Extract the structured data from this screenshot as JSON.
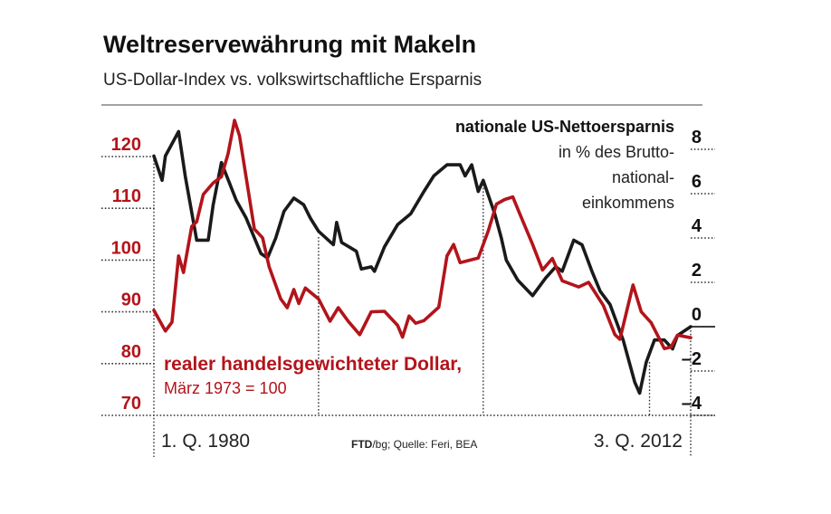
{
  "chart_data": {
    "type": "line",
    "title": "Weltreservewährung mit Makeln",
    "subtitle": "US-Dollar-Index vs. volkswirtschaftliche Ersparnis",
    "source_prefix": "FTD",
    "source_rest": "/bg; Quelle: Feri, BEA",
    "x_start_label": "1. Q. 1980",
    "x_end_label": "3. Q. 2012",
    "xlim": [
      1980.0,
      2012.6
    ],
    "colors": {
      "dollar": "#b3141b",
      "savings": "#1a1a1a"
    },
    "left_axis": {
      "ticks": [
        "120",
        "110",
        "100",
        "90",
        "80",
        "70"
      ],
      "tick_values": [
        120,
        110,
        100,
        90,
        80,
        70
      ],
      "ylim": [
        70,
        120
      ],
      "color": "#b3141b"
    },
    "right_axis": {
      "ticks": [
        "8",
        "6",
        "4",
        "2",
        "0",
        "–2",
        "–4"
      ],
      "tick_values": [
        8,
        6,
        4,
        2,
        0,
        -2,
        -4
      ],
      "ylim": [
        -4,
        8
      ]
    },
    "grid": "dotted",
    "series": [
      {
        "name": "realer handelsgewichteter Dollar,",
        "note": "März 1973 = 100",
        "axis": "left",
        "x": [
          1980.0,
          1980.7,
          1981.1,
          1981.5,
          1981.8,
          1982.3,
          1982.6,
          1983.0,
          1983.6,
          1984.1,
          1984.5,
          1984.9,
          1985.2,
          1985.6,
          1986.1,
          1986.6,
          1987.0,
          1987.7,
          1988.1,
          1988.5,
          1988.8,
          1989.2,
          1990.0,
          1990.7,
          1991.2,
          1991.8,
          1992.5,
          1993.2,
          1994.0,
          1994.8,
          1995.1,
          1995.5,
          1995.9,
          1996.4,
          1997.3,
          1997.8,
          1998.2,
          1998.6,
          1999.7,
          2000.3,
          2000.8,
          2001.3,
          2001.8,
          2002.2,
          2003.0,
          2003.6,
          2004.2,
          2004.8,
          2005.8,
          2006.4,
          2007.3,
          2008.0,
          2008.3,
          2009.1,
          2009.6,
          2010.2,
          2011.0,
          2011.4,
          2011.8,
          2012.6
        ],
        "y": [
          90.3,
          86.3,
          88,
          100.8,
          97.6,
          106.5,
          107.4,
          112.7,
          114.9,
          116.1,
          120.5,
          127,
          124,
          116,
          106,
          104.3,
          98.7,
          92.5,
          90.8,
          94.3,
          91.6,
          94.6,
          92.5,
          88.2,
          90.8,
          88.2,
          85.6,
          90,
          90.1,
          87.4,
          85.1,
          89.2,
          87.8,
          88.3,
          90.9,
          100.8,
          103,
          99.5,
          100.4,
          105.6,
          110.8,
          111.7,
          112.2,
          109.1,
          103,
          98.1,
          100.3,
          96,
          94.8,
          95.7,
          91.2,
          85.6,
          84.7,
          95.2,
          90,
          87.9,
          82.9,
          83.2,
          85.5,
          85
        ]
      },
      {
        "name": "nationale US-Nettoersparnis",
        "note_lines": [
          "in % des Brutto-",
          "national-",
          "einkommens"
        ],
        "axis": "right",
        "x": [
          1980.0,
          1980.5,
          1980.7,
          1981.5,
          1981.9,
          1982.6,
          1983.3,
          1983.6,
          1984.1,
          1985.0,
          1985.6,
          1986.5,
          1986.9,
          1987.4,
          1987.9,
          1988.5,
          1989.1,
          1989.5,
          1990.0,
          1990.9,
          1991.1,
          1991.4,
          1992.3,
          1992.6,
          1993.2,
          1993.4,
          1994.0,
          1994.8,
          1995.6,
          1996.4,
          1997.0,
          1997.8,
          1998.6,
          1998.9,
          1999.3,
          1999.7,
          2000.0,
          2000.7,
          2001.1,
          2001.4,
          2002.1,
          2003.0,
          2003.8,
          2004.4,
          2004.8,
          2005.5,
          2006.0,
          2006.6,
          2007.1,
          2007.7,
          2008.5,
          2009.2,
          2009.5,
          2009.9,
          2010.4,
          2011.0,
          2011.5,
          2011.8,
          2012.6
        ],
        "y": [
          7.7,
          6.6,
          7.7,
          8.8,
          6.8,
          3.9,
          3.9,
          5.5,
          7.4,
          5.7,
          4.9,
          3.3,
          3.1,
          4.0,
          5.2,
          5.8,
          5.5,
          4.9,
          4.3,
          3.7,
          4.7,
          3.8,
          3.4,
          2.6,
          2.7,
          2.5,
          3.6,
          4.6,
          5.1,
          6.1,
          6.8,
          7.3,
          7.3,
          6.8,
          7.3,
          6.1,
          6.6,
          5.1,
          4.0,
          3.0,
          2.1,
          1.4,
          2.2,
          2.7,
          2.5,
          3.9,
          3.7,
          2.5,
          1.6,
          1.0,
          -0.6,
          -2.5,
          -3.0,
          -1.6,
          -0.6,
          -0.6,
          -1.0,
          -0.4,
          0.0
        ]
      }
    ]
  }
}
